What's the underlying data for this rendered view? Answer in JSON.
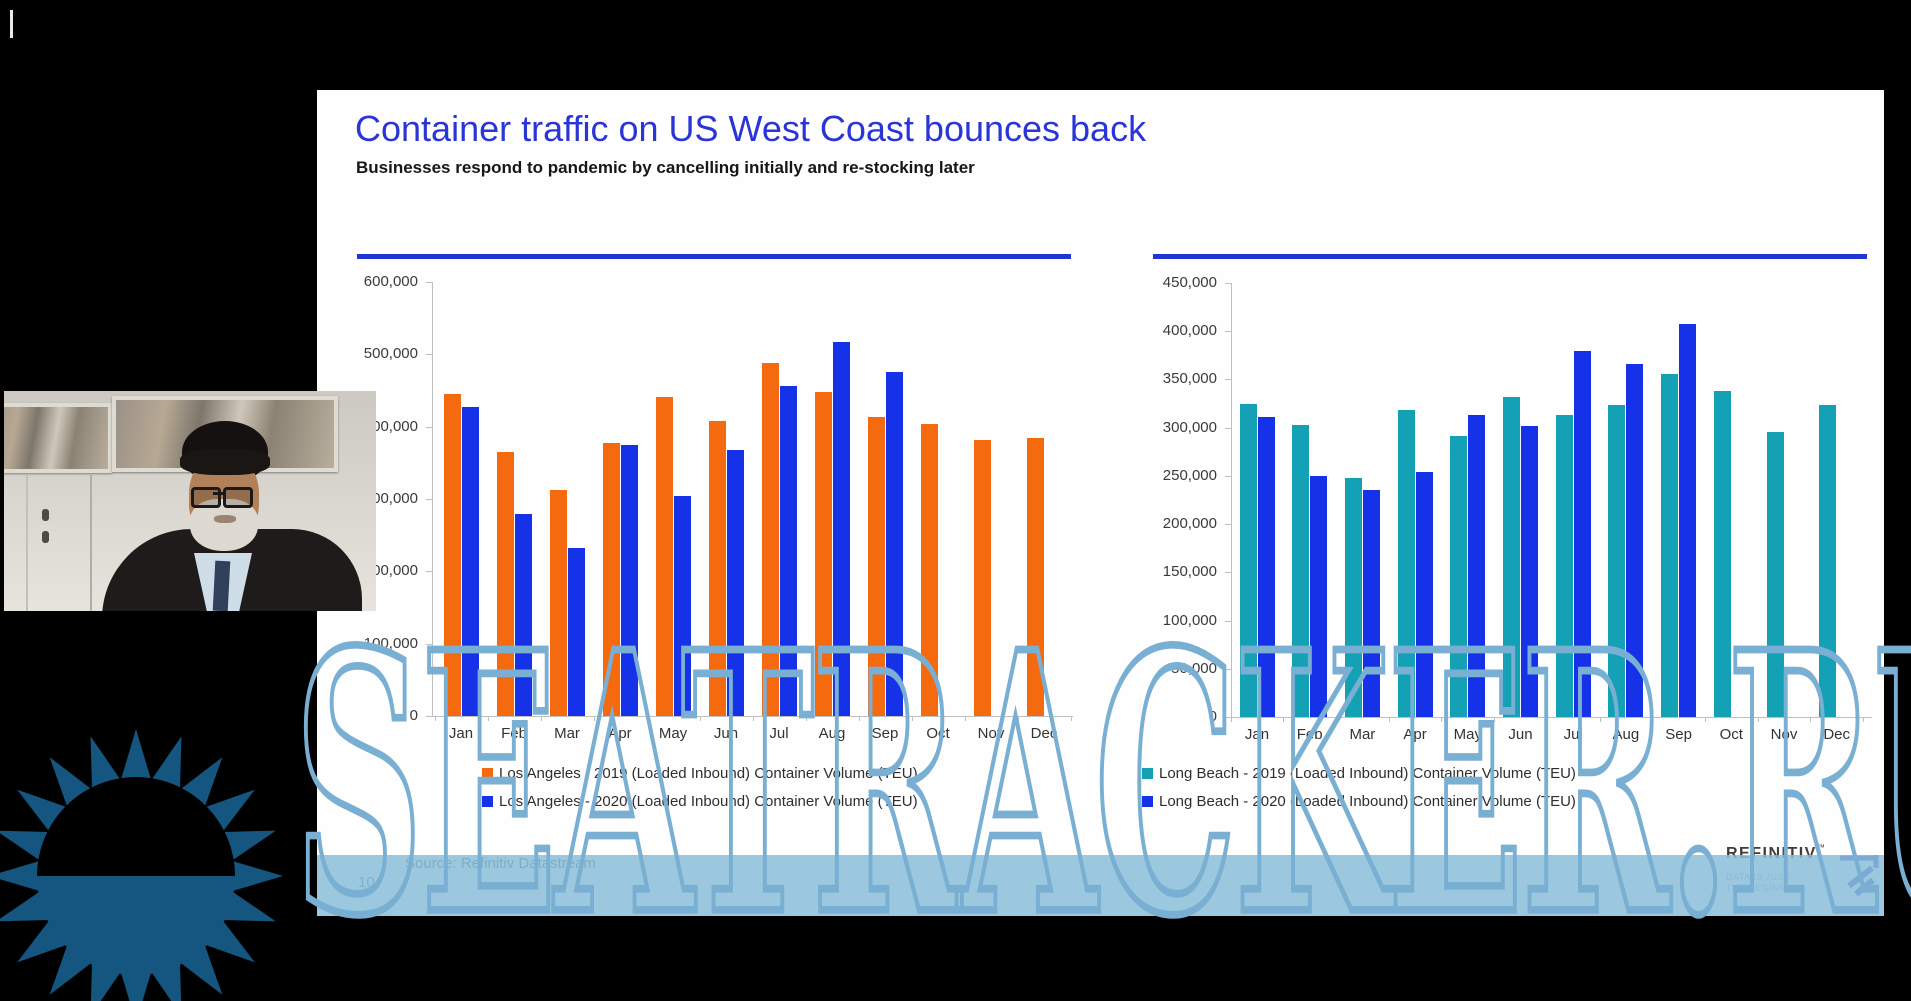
{
  "slide": {
    "title": "Container traffic on US West Coast bounces back",
    "subtitle": "Businesses respond to pandemic by cancelling initially and re-stocking later",
    "source": "Source: Refinitiv Datastream",
    "page_number": "10",
    "title_color": "#2a35d8",
    "accent_rule_color": "#2135d4"
  },
  "branding": {
    "name": "REFINITIV",
    "trademark": "™",
    "tagline_line1": "DATA IS JUST",
    "tagline_line2": "THE BEGINNING",
    "logo_color": "#2b3bc9"
  },
  "watermark": {
    "text": "SEATRACKER.RU",
    "outline_color": "#79afd3",
    "band_color": "#89bed8",
    "navy_color": "#0c4a70",
    "sun_color": "#14567f"
  },
  "chart_data": [
    {
      "type": "bar",
      "title": "",
      "categories": [
        "Jan",
        "Feb",
        "Mar",
        "Apr",
        "May",
        "Jun",
        "Jul",
        "Aug",
        "Sep",
        "Oct",
        "Nov",
        "Dec"
      ],
      "series": [
        {
          "name": "Los Angeles - 2019 (Loaded Inbound) Container Volume (TEU)",
          "color": "#f5690f",
          "values": [
            445000,
            365000,
            313000,
            378000,
            441000,
            408000,
            488000,
            448000,
            413000,
            404000,
            382000,
            384000
          ]
        },
        {
          "name": "Los Angeles - 2020 (Loaded Inbound) Container Volume (TEU)",
          "color": "#1532e8",
          "values": [
            427000,
            279000,
            232000,
            375000,
            304000,
            368000,
            456000,
            517000,
            476000,
            null,
            null,
            null
          ]
        }
      ],
      "xlabel": "",
      "ylabel": "",
      "ylim": [
        0,
        600000
      ],
      "ytick_step": 100000,
      "grid": false,
      "legend_position": "bottom"
    },
    {
      "type": "bar",
      "title": "",
      "categories": [
        "Jan",
        "Feb",
        "Mar",
        "Apr",
        "May",
        "Jun",
        "Jul",
        "Aug",
        "Sep",
        "Oct",
        "Nov",
        "Dec"
      ],
      "series": [
        {
          "name": "Long Beach - 2019 (Loaded Inbound) Container Volume (TEU)",
          "color": "#14a1b5",
          "values": [
            325000,
            303000,
            248000,
            318000,
            291000,
            332000,
            313000,
            324000,
            356000,
            338000,
            295000,
            324000
          ]
        },
        {
          "name": "Long Beach - 2020 (Loaded Inbound) Container Volume (TEU)",
          "color": "#1532e8",
          "values": [
            311000,
            250000,
            235000,
            254000,
            313000,
            302000,
            379000,
            366000,
            408000,
            null,
            null,
            null
          ]
        }
      ],
      "xlabel": "",
      "ylabel": "",
      "ylim": [
        0,
        450000
      ],
      "ytick_step": 50000,
      "grid": false,
      "legend_position": "bottom"
    }
  ]
}
